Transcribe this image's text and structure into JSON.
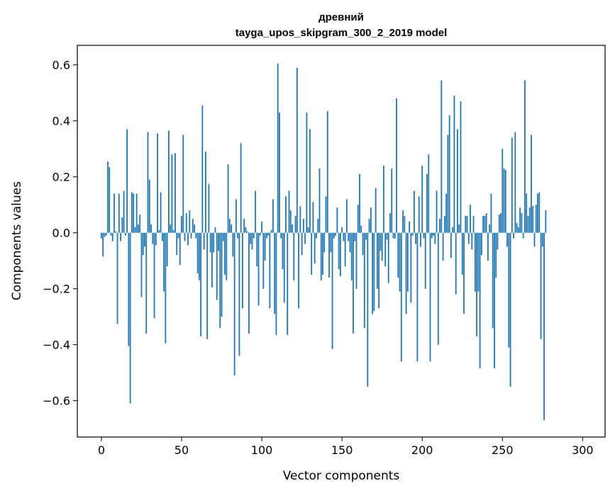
{
  "chart_data": {
    "type": "bar",
    "title_line1": "древний",
    "title_line2": "tayga_upos_skipgram_300_2_2019 model",
    "xlabel": "Vector components",
    "ylabel": "Components values",
    "xlim": [
      -15,
      314
    ],
    "ylim": [
      -0.73,
      0.67
    ],
    "xticks": [
      0,
      50,
      100,
      150,
      200,
      250,
      300
    ],
    "yticks": [
      -0.6,
      -0.4,
      -0.2,
      0.0,
      0.2,
      0.4,
      0.6
    ],
    "ytick_labels": [
      "−0.6",
      "−0.4",
      "−0.2",
      "0.0",
      "0.2",
      "0.4",
      "0.6"
    ],
    "bar_color": "#1f77b4",
    "grid": false,
    "values": [
      -0.02,
      -0.085,
      -0.015,
      -0.01,
      0.255,
      0.235,
      -0.01,
      -0.03,
      0.14,
      0.005,
      -0.325,
      0.14,
      -0.03,
      0.055,
      0.15,
      -0.01,
      0.37,
      -0.405,
      -0.61,
      0.145,
      0.14,
      0.02,
      0.14,
      0.03,
      0.065,
      -0.23,
      -0.08,
      -0.05,
      -0.36,
      0.36,
      0.19,
      0.03,
      -0.04,
      -0.305,
      -0.045,
      0.355,
      0.01,
      0.145,
      -0.03,
      -0.21,
      -0.395,
      -0.12,
      0.365,
      0.03,
      0.28,
      0.01,
      0.285,
      -0.08,
      -0.02,
      -0.115,
      0.06,
      0.35,
      -0.03,
      0.07,
      -0.045,
      0.08,
      -0.02,
      0.05,
      0.03,
      -0.02,
      -0.145,
      -0.17,
      -0.37,
      0.455,
      -0.06,
      0.29,
      -0.38,
      0.175,
      -0.07,
      -0.195,
      -0.07,
      0.02,
      -0.24,
      -0.065,
      -0.34,
      -0.3,
      -0.03,
      -0.15,
      -0.17,
      0.245,
      0.05,
      0.03,
      -0.085,
      -0.51,
      0.12,
      -0.02,
      -0.44,
      0.32,
      -0.27,
      0.05,
      0.02,
      0.005,
      -0.36,
      -0.04,
      -0.06,
      -0.02,
      0.15,
      -0.12,
      -0.26,
      -0.01,
      0.04,
      -0.2,
      -0.1,
      -0.02,
      -0.01,
      -0.27,
      0.01,
      0.12,
      -0.29,
      -0.365,
      0.605,
      0.43,
      -0.02,
      -0.13,
      -0.25,
      0.13,
      -0.365,
      0.15,
      0.08,
      0.03,
      -0.17,
      0.06,
      0.59,
      -0.27,
      0.095,
      -0.08,
      0.05,
      -0.04,
      0.43,
      0.02,
      0.37,
      -0.15,
      0.11,
      -0.11,
      -0.02,
      0.05,
      0.23,
      -0.17,
      -0.15,
      -0.07,
      0.13,
      0.435,
      -0.16,
      -0.07,
      -0.415,
      -0.02,
      -0.01,
      0.09,
      -0.13,
      -0.155,
      0.02,
      -0.03,
      -0.12,
      0.12,
      -0.03,
      -0.07,
      -0.17,
      -0.36,
      -0.03,
      -0.2,
      0.1,
      0.21,
      0.025,
      -0.08,
      -0.34,
      -0.025,
      -0.55,
      0.05,
      0.09,
      -0.29,
      -0.28,
      0.16,
      -0.2,
      -0.27,
      -0.065,
      -0.1,
      0.24,
      -0.12,
      -0.025,
      -0.18,
      0.07,
      0.23,
      -0.02,
      -0.02,
      0.48,
      -0.16,
      -0.21,
      -0.46,
      0.08,
      0.06,
      -0.29,
      -0.21,
      0.04,
      -0.25,
      -0.01,
      0.15,
      -0.04,
      -0.46,
      0.13,
      -0.05,
      0.24,
      -0.02,
      -0.2,
      0.21,
      0.28,
      -0.46,
      -0.02,
      -0.01,
      -0.04,
      0.15,
      -0.4,
      0.05,
      0.545,
      -0.1,
      0.06,
      0.14,
      0.35,
      0.42,
      -0.09,
      0.02,
      0.49,
      -0.22,
      0.37,
      0.03,
      0.47,
      -0.15,
      -0.29,
      0.06,
      0.06,
      -0.04,
      0.1,
      -0.06,
      0.06,
      -0.21,
      -0.37,
      -0.21,
      -0.485,
      -0.08,
      0.06,
      0.06,
      0.07,
      -0.1,
      0.03,
      0.14,
      -0.34,
      -0.485,
      -0.16,
      -0.06,
      0.065,
      0.07,
      0.3,
      0.23,
      0.225,
      -0.05,
      -0.41,
      -0.55,
      0.34,
      -0.02,
      0.36,
      0.035,
      0.02,
      0.09,
      0.07,
      -0.02,
      0.545,
      0.14,
      0.06,
      0.09,
      0.35,
      0.095,
      -0.05,
      0.1,
      0.14,
      0.145,
      -0.38,
      -0.05,
      -0.67,
      0.08
    ]
  }
}
